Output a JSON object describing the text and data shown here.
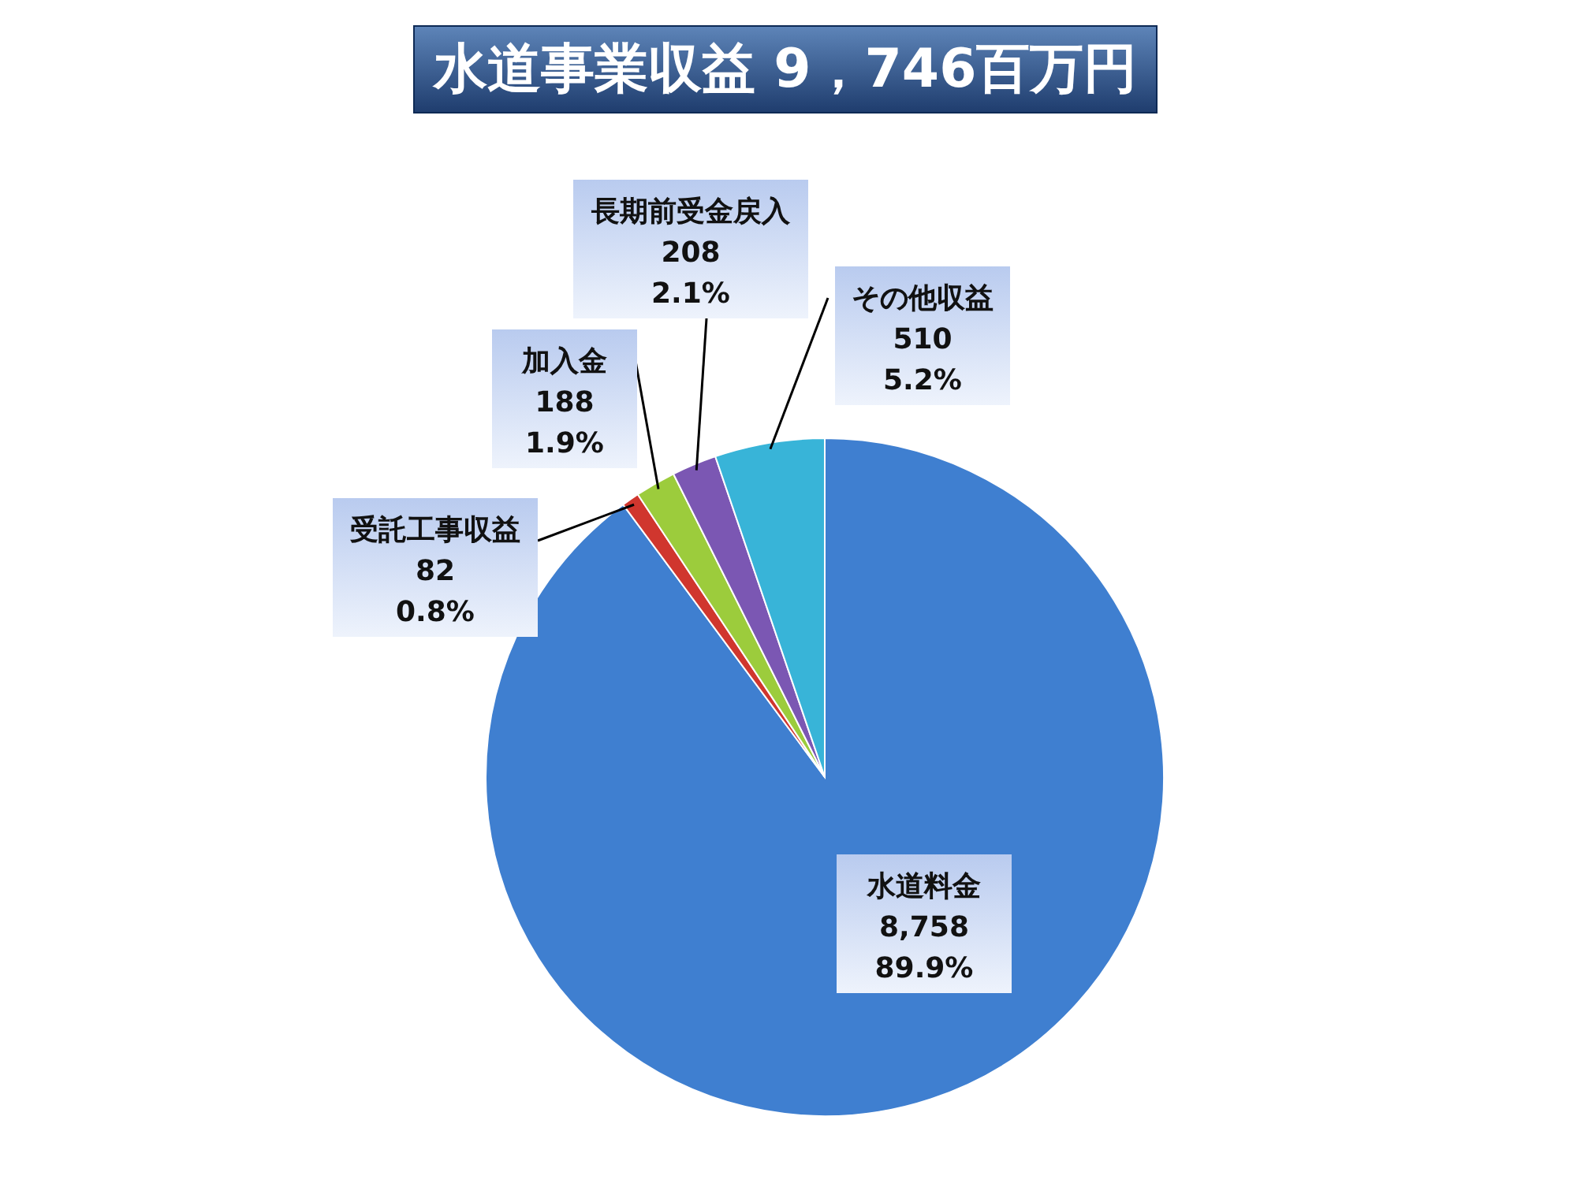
{
  "chart_data": {
    "type": "pie",
    "title": "水道事業収益 9，746百万円",
    "categories": [
      "水道料金",
      "受託工事収益",
      "加入金",
      "長期前受金戻入",
      "その他収益"
    ],
    "values": [
      8758,
      82,
      188,
      208,
      510
    ],
    "colors": [
      "#3f7fd0",
      "#d0362e",
      "#9ccc3c",
      "#7b57b3",
      "#38b4d8"
    ],
    "value_labels": [
      "8,758\n89.9%",
      "82\n0.8%",
      "188\n1.9%",
      "208\n2.1%",
      "510\n5.2%"
    ],
    "legend": false
  }
}
